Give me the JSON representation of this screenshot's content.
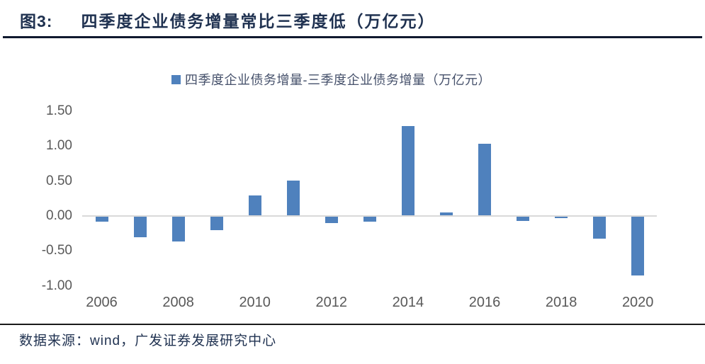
{
  "header": {
    "figure_label": "图3:",
    "title": "四季度企业债务增量常比三季度低（万亿元）"
  },
  "legend": {
    "label": "四季度企业债务增量-三季度企业债务增量（万亿元）"
  },
  "footer": {
    "source_text": "数据来源：wind，广发证券发展研究中心"
  },
  "colors": {
    "bar": "#4F81BD",
    "title_text": "#1F3150",
    "rule_dark": "#10192E",
    "footer_rule": "#1A1A1A",
    "axis_text": "#595959",
    "legend_text": "#46516B",
    "zero_line": "#D9D9D9"
  },
  "chart_data": {
    "type": "bar",
    "title": "四季度企业债务增量常比三季度低（万亿元）",
    "legend_entries": [
      "四季度企业债务增量-三季度企业债务增量（万亿元）"
    ],
    "legend_position": "top",
    "grid": false,
    "xlabel": "",
    "ylabel": "",
    "unit": "万亿元",
    "categories": [
      2006,
      2007,
      2008,
      2009,
      2010,
      2011,
      2012,
      2013,
      2014,
      2015,
      2016,
      2017,
      2018,
      2019,
      2020
    ],
    "values": [
      -0.07,
      -0.29,
      -0.35,
      -0.19,
      0.28,
      0.5,
      -0.09,
      -0.07,
      1.28,
      0.04,
      1.02,
      -0.06,
      -0.02,
      -0.31,
      -0.84
    ],
    "x_tick_labels": [
      "2006",
      "2008",
      "2010",
      "2012",
      "2014",
      "2016",
      "2018",
      "2020"
    ],
    "y_ticks": [
      1.5,
      1.0,
      0.5,
      0.0,
      -0.5,
      -1.0
    ],
    "ylim": [
      -1.0,
      1.5
    ]
  }
}
